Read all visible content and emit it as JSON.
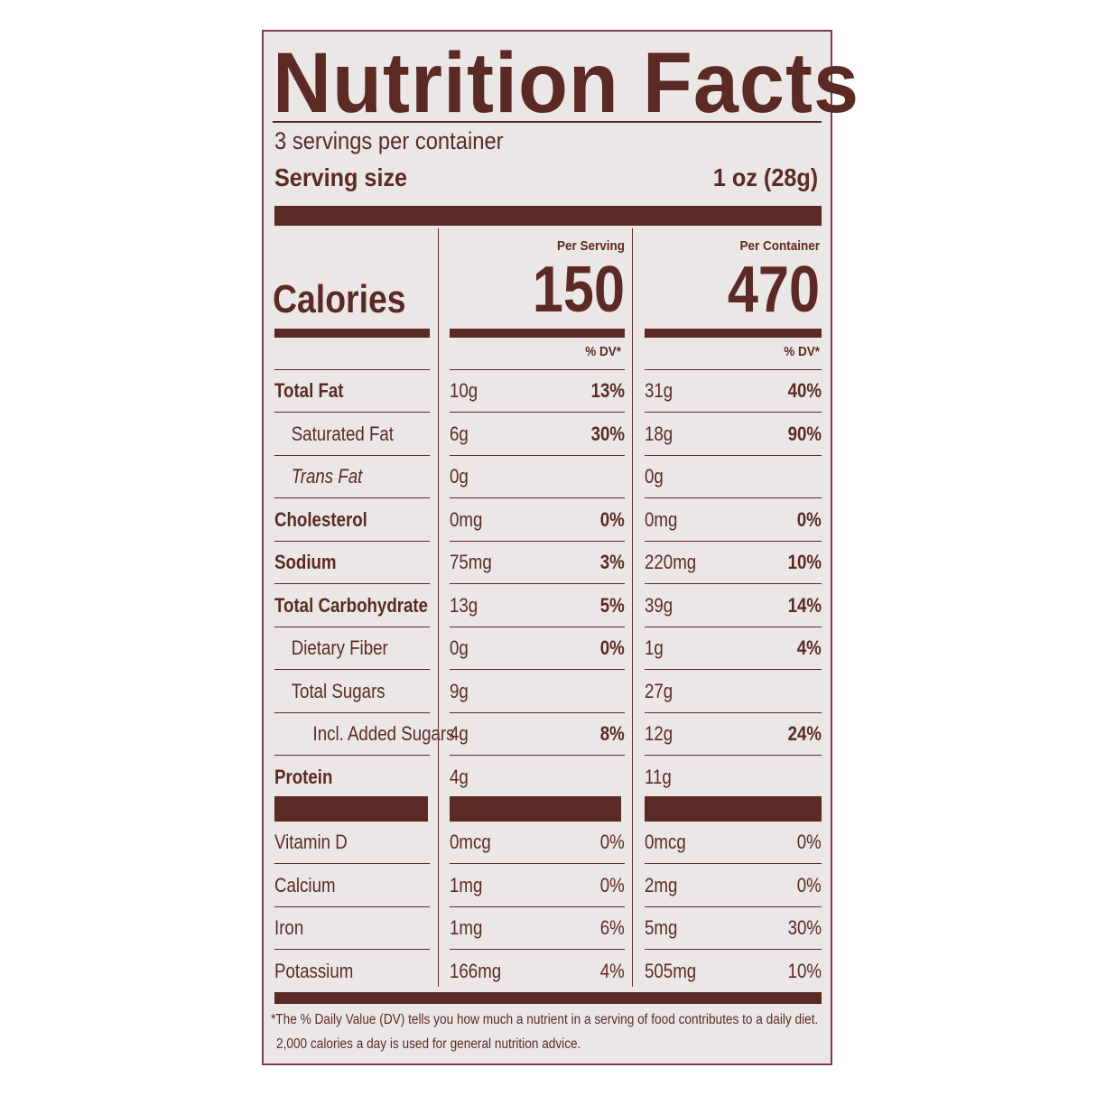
{
  "label": {
    "title": "Nutrition Facts",
    "servings_per_container": "3 servings per container",
    "serving_size_label": "Serving size",
    "serving_size_value": "1 oz (28g)",
    "calories_label": "Calories",
    "per_serving_label": "Per Serving",
    "per_container_label": "Per Container",
    "calories_per_serving": "150",
    "calories_per_container": "470",
    "dv_label": "% DV*",
    "nutrients": [
      {
        "name": "Total Fat",
        "bold": true,
        "indent": 0,
        "serving_amount": "10g",
        "serving_dv": "13%",
        "container_amount": "31g",
        "container_dv": "40%"
      },
      {
        "name": "Saturated Fat",
        "bold": false,
        "indent": 1,
        "serving_amount": "6g",
        "serving_dv": "30%",
        "container_amount": "18g",
        "container_dv": "90%"
      },
      {
        "name": "Trans Fat",
        "bold": false,
        "indent": 1,
        "italic": true,
        "serving_amount": "0g",
        "serving_dv": "",
        "container_amount": "0g",
        "container_dv": ""
      },
      {
        "name": "Cholesterol",
        "bold": true,
        "indent": 0,
        "serving_amount": "0mg",
        "serving_dv": "0%",
        "container_amount": "0mg",
        "container_dv": "0%"
      },
      {
        "name": "Sodium",
        "bold": true,
        "indent": 0,
        "serving_amount": "75mg",
        "serving_dv": "3%",
        "container_amount": "220mg",
        "container_dv": "10%"
      },
      {
        "name": "Total Carbohydrate",
        "bold": true,
        "indent": 0,
        "serving_amount": "13g",
        "serving_dv": "5%",
        "container_amount": "39g",
        "container_dv": "14%"
      },
      {
        "name": "Dietary Fiber",
        "bold": false,
        "indent": 1,
        "serving_amount": "0g",
        "serving_dv": "0%",
        "container_amount": "1g",
        "container_dv": "4%"
      },
      {
        "name": "Total Sugars",
        "bold": false,
        "indent": 1,
        "serving_amount": "9g",
        "serving_dv": "",
        "container_amount": "27g",
        "container_dv": ""
      },
      {
        "name": "Incl. Added Sugars",
        "bold": false,
        "indent": 2,
        "serving_amount": "4g",
        "serving_dv": "8%",
        "container_amount": "12g",
        "container_dv": "24%"
      },
      {
        "name": "Protein",
        "bold": true,
        "indent": 0,
        "serving_amount": "4g",
        "serving_dv": "",
        "container_amount": "11g",
        "container_dv": ""
      }
    ],
    "vitamins": [
      {
        "name": "Vitamin D",
        "serving_amount": "0mcg",
        "serving_dv": "0%",
        "container_amount": "0mcg",
        "container_dv": "0%"
      },
      {
        "name": "Calcium",
        "serving_amount": "1mg",
        "serving_dv": "0%",
        "container_amount": "2mg",
        "container_dv": "0%"
      },
      {
        "name": "Iron",
        "serving_amount": "1mg",
        "serving_dv": "6%",
        "container_amount": "5mg",
        "container_dv": "30%"
      },
      {
        "name": "Potassium",
        "serving_amount": "166mg",
        "serving_dv": "4%",
        "container_amount": "505mg",
        "container_dv": "10%"
      }
    ],
    "footnote_line1": "*The % Daily Value (DV) tells you how much a nutrient in a serving of food contributes to a daily diet.",
    "footnote_line2": "2,000 calories a day is used for general nutrition advice."
  },
  "colors": {
    "ink": "#5b2a24",
    "panel": "#ece7e7",
    "border": "#7d3a55"
  }
}
